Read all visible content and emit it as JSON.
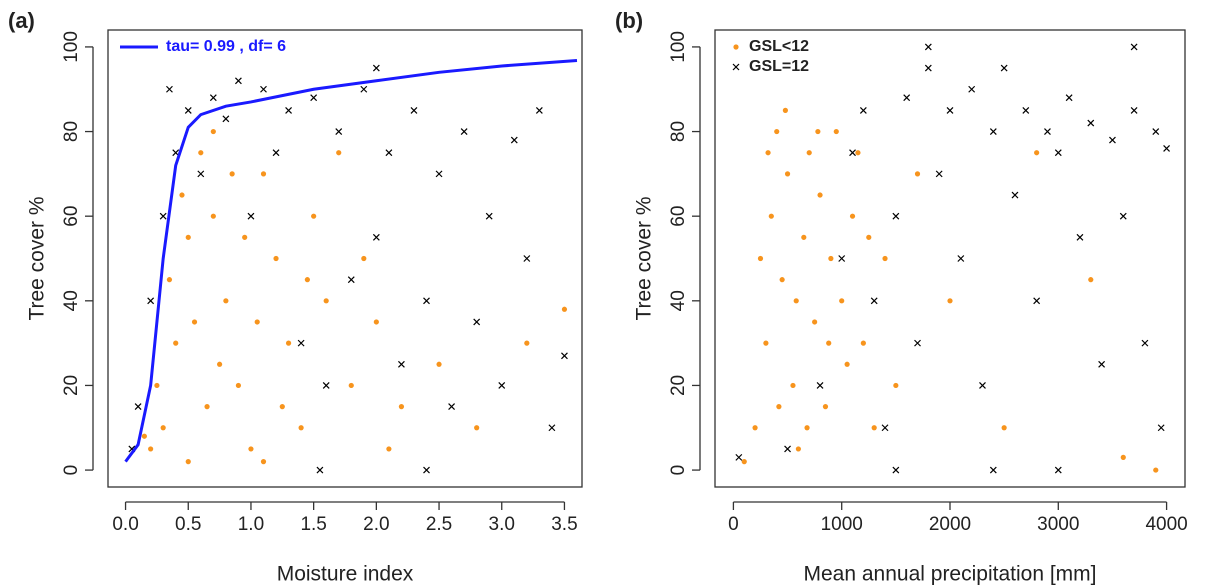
{
  "chart_data": [
    {
      "type": "scatter",
      "panel_label": "(a)",
      "x_label": "Moisture index",
      "y_label": "Tree cover %",
      "xlim": [
        -0.14,
        3.64
      ],
      "ylim": [
        -4,
        104
      ],
      "xticks": [
        {
          "value": 0,
          "label": "0.0"
        },
        0.5,
        {
          "value": 1,
          "label": "1.0"
        },
        1.5,
        {
          "value": 2,
          "label": "2.0"
        },
        2.5,
        {
          "value": 3,
          "label": "3.0"
        },
        3.5
      ],
      "yticks": [
        0,
        20,
        40,
        60,
        80,
        100
      ],
      "series": [
        {
          "color": "#f7941d",
          "marker": "o",
          "x": [
            0.3,
            0.4,
            0.5,
            0.6,
            0.7,
            0.8,
            0.9,
            1.0,
            0.5,
            0.7,
            1.1,
            1.2,
            1.3,
            1.4,
            1.5,
            1.6,
            1.8,
            2.0,
            2.2,
            0.35,
            0.45,
            0.25,
            0.65,
            0.85,
            1.05,
            1.7,
            1.9,
            2.1,
            2.5,
            2.8,
            3.2,
            0.55,
            0.75,
            0.95,
            1.25,
            1.45,
            0.2,
            0.15,
            3.5,
            1.1
          ],
          "values": [
            10,
            30,
            55,
            75,
            60,
            40,
            20,
            5,
            2,
            80,
            70,
            50,
            30,
            10,
            60,
            40,
            20,
            35,
            15,
            45,
            65,
            20,
            15,
            70,
            35,
            75,
            50,
            5,
            25,
            10,
            30,
            35,
            25,
            55,
            15,
            45,
            5,
            8,
            38,
            2
          ]
        },
        {
          "color": "#000000",
          "marker": "x",
          "x": [
            0.05,
            0.1,
            0.2,
            0.3,
            0.4,
            0.5,
            0.7,
            0.9,
            1.1,
            1.3,
            1.5,
            1.7,
            1.9,
            2.1,
            2.3,
            2.5,
            2.7,
            2.9,
            3.1,
            3.3,
            1.0,
            1.4,
            1.6,
            1.8,
            2.0,
            2.2,
            2.4,
            2.6,
            2.8,
            3.0,
            3.2,
            3.4,
            1.2,
            0.8,
            0.6,
            1.55,
            2.4,
            0.35,
            2.0,
            3.5
          ],
          "values": [
            5,
            15,
            40,
            60,
            75,
            85,
            88,
            92,
            90,
            85,
            88,
            80,
            90,
            75,
            85,
            70,
            80,
            60,
            78,
            85,
            60,
            30,
            20,
            45,
            55,
            25,
            40,
            15,
            35,
            20,
            50,
            10,
            75,
            83,
            70,
            0,
            0,
            90,
            95,
            27
          ]
        },
        {
          "name": "tau= 0.99 , df= 6",
          "color": "#1a1aff",
          "marker": "line",
          "x": [
            0,
            0.1,
            0.2,
            0.3,
            0.4,
            0.5,
            0.6,
            0.8,
            1.0,
            1.5,
            2.0,
            2.5,
            3.0,
            3.6
          ],
          "values": [
            2,
            6,
            20,
            50,
            72,
            81,
            84,
            86,
            87,
            90,
            92,
            94,
            95.5,
            96.8
          ]
        }
      ]
    },
    {
      "type": "scatter",
      "panel_label": "(b)",
      "x_label": "Mean annual precipitation [mm]",
      "y_label": "Tree cover %",
      "xlim": [
        -170,
        4170
      ],
      "ylim": [
        -4,
        104
      ],
      "xticks": [
        0,
        1000,
        2000,
        3000,
        4000
      ],
      "yticks": [
        0,
        20,
        40,
        60,
        80,
        100
      ],
      "series": [
        {
          "name": "GSL<12",
          "color": "#f7941d",
          "marker": "o",
          "x": [
            100,
            200,
            300,
            350,
            400,
            450,
            500,
            550,
            600,
            650,
            700,
            750,
            800,
            850,
            900,
            950,
            1000,
            1050,
            1100,
            1200,
            1300,
            1400,
            1500,
            250,
            320,
            420,
            480,
            580,
            680,
            780,
            880,
            1150,
            1250,
            2000,
            2500,
            3600,
            3900,
            3300,
            2800,
            1700
          ],
          "values": [
            2,
            10,
            30,
            60,
            80,
            45,
            70,
            20,
            5,
            55,
            75,
            35,
            65,
            15,
            50,
            80,
            40,
            25,
            60,
            30,
            10,
            50,
            20,
            50,
            75,
            15,
            85,
            40,
            10,
            80,
            30,
            75,
            55,
            40,
            10,
            3,
            0,
            45,
            75,
            70
          ]
        },
        {
          "name": "GSL=12",
          "color": "#000000",
          "marker": "x",
          "x": [
            50,
            500,
            800,
            1000,
            1100,
            1200,
            1300,
            1400,
            1500,
            1600,
            1700,
            1800,
            1900,
            2000,
            2100,
            2200,
            2300,
            2400,
            2500,
            2600,
            2700,
            2800,
            2900,
            3000,
            3100,
            3200,
            3300,
            3400,
            3500,
            3600,
            3700,
            3800,
            3900,
            4000,
            2400,
            3000,
            1500,
            3700,
            1800,
            3950
          ],
          "values": [
            3,
            5,
            20,
            50,
            75,
            85,
            40,
            10,
            60,
            88,
            30,
            95,
            70,
            85,
            50,
            90,
            20,
            80,
            95,
            65,
            85,
            40,
            80,
            75,
            88,
            55,
            82,
            25,
            78,
            60,
            85,
            30,
            80,
            76,
            0,
            0,
            0,
            100,
            100,
            10
          ]
        }
      ]
    }
  ]
}
